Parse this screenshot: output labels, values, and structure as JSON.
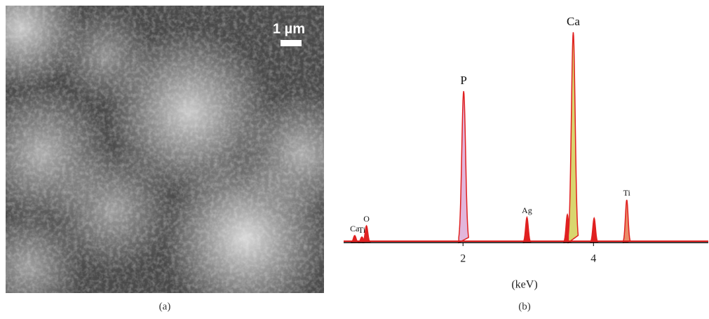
{
  "image_panel": {
    "scale_label": "1 µm",
    "caption": "(a)"
  },
  "chart_data": {
    "type": "spectrum",
    "xlabel": "(keV)",
    "caption": "(b)",
    "xlim": [
      0.17,
      5.76
    ],
    "ylim": [
      0,
      310
    ],
    "xticks": [
      2,
      4
    ],
    "line_color": "#e02020",
    "peaks": [
      {
        "label": "Ca",
        "x": 0.34,
        "height": 10,
        "color": "#e02020"
      },
      {
        "label": "Ti",
        "x": 0.45,
        "height": 8,
        "color": "#e02020"
      },
      {
        "label": "O",
        "x": 0.52,
        "height": 24,
        "color": "#e02020"
      },
      {
        "label": "P",
        "x": 2.01,
        "height": 216,
        "color": "#e2b6db"
      },
      {
        "label": "Ag",
        "x": 2.98,
        "height": 36,
        "color": "#e02020"
      },
      {
        "label": null,
        "x": 3.6,
        "height": 40,
        "color": "#e02020"
      },
      {
        "label": "Ca",
        "x": 3.69,
        "height": 300,
        "color": "#d9d66e"
      },
      {
        "label": null,
        "x": 4.01,
        "height": 35,
        "color": "#e02020"
      },
      {
        "label": "Ti",
        "x": 4.51,
        "height": 61,
        "color": "#ea8c68"
      }
    ]
  }
}
